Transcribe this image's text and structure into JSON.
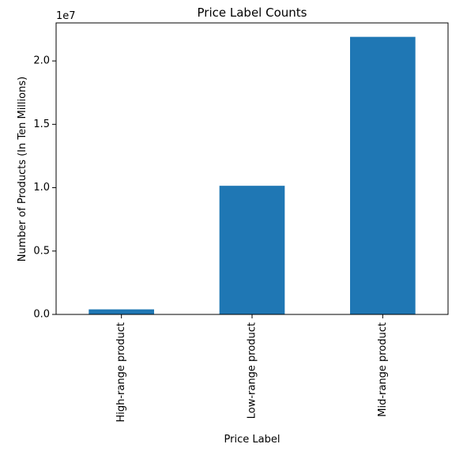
{
  "chart_data": {
    "type": "bar",
    "title": "Price Label Counts",
    "xlabel": "Price Label",
    "ylabel": "Number of Products (In Ten Millions)",
    "y_offset_label": "1e7",
    "y_scale": 10000000,
    "categories": [
      "High-range product",
      "Low-range product",
      "Mid-range product"
    ],
    "values": [
      400000,
      10150000,
      21900000
    ],
    "ylim": [
      0,
      23000000
    ],
    "yticks": [
      0,
      5000000,
      10000000,
      15000000,
      20000000
    ],
    "ytick_labels": [
      "0.0",
      "0.5",
      "1.0",
      "1.5",
      "2.0"
    ],
    "bar_color": "#1f77b4",
    "grid": false,
    "legend": false
  }
}
